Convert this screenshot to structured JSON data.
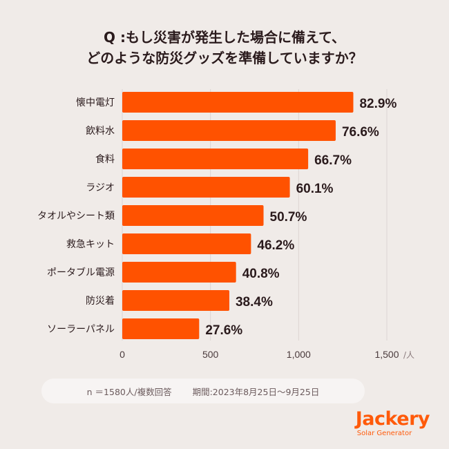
{
  "title": {
    "line1": "Q :もし災害が発生した場合に備えて、",
    "line2": "どのような防災グッズを準備していますか？"
  },
  "chart_data": {
    "type": "bar",
    "orientation": "horizontal",
    "categories": [
      "懐中電灯",
      "飲料水",
      "食料",
      "ラジオ",
      "タオルやシート類",
      "救急キット",
      "ポータブル電源",
      "防災着",
      "ソーラーパネル"
    ],
    "values": [
      1310,
      1210,
      1054,
      950,
      801,
      730,
      645,
      607,
      436
    ],
    "data_labels": [
      "82.9%",
      "76.6%",
      "66.7%",
      "60.1%",
      "50.7%",
      "46.2%",
      "40.8%",
      "38.4%",
      "27.6%"
    ],
    "x_ticks": [
      0,
      500,
      1000,
      1500
    ],
    "x_tick_labels": [
      "0",
      "500",
      "1,000",
      "1,500"
    ],
    "x_unit": "/人",
    "xlim": [
      0,
      1500
    ],
    "grid": true,
    "bar_color": "#ff5200"
  },
  "footer": {
    "sample": "n ＝1580人/複数回答",
    "period": "期間:2023年8月25日〜9月25日"
  },
  "logo": {
    "brand": "Jackery",
    "sub": "Solar Generator"
  }
}
